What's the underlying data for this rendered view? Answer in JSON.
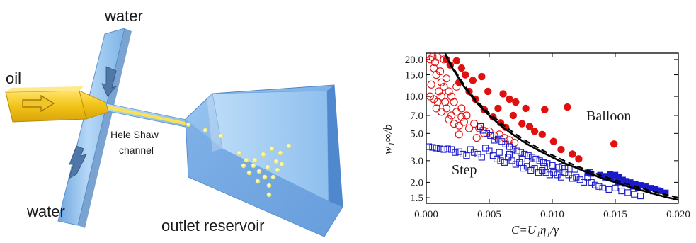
{
  "diagram": {
    "labels": {
      "water_top": "water",
      "water_bottom": "water",
      "oil": "oil",
      "channel_line1": "Hele Shaw",
      "channel_line2": "channel",
      "reservoir": "outlet reservoir"
    },
    "colors": {
      "water_channel": "#9cc8f2",
      "reservoir": "#7fb2ea",
      "oil": "#f2c418",
      "droplet": "#f4f58a",
      "arrow": "#4f77a8"
    }
  },
  "chart_data": {
    "type": "scatter",
    "xlabel": "C=U₁η₁/γ",
    "ylabel": "w₁∞/b",
    "xlim": [
      0.0,
      0.02
    ],
    "ylim": [
      1.35,
      22.5
    ],
    "yscale": "log",
    "xticks": [
      "0.000",
      "0.005",
      "0.010",
      "0.015",
      "0.020"
    ],
    "yticks": [
      "1.5",
      "2.0",
      "3.0",
      "5.0",
      "7.0",
      "10.0",
      "15.0",
      "20.0"
    ],
    "annotations": [
      "Balloon",
      "Step"
    ],
    "colors": {
      "balloon": "#e01010",
      "step": "#1a1ac8",
      "curve": "#000000"
    },
    "series": [
      {
        "marker": "filled-circle",
        "points": [
          [
            0.0016,
            20
          ],
          [
            0.0019,
            18
          ],
          [
            0.0024,
            19.5
          ],
          [
            0.0028,
            17
          ],
          [
            0.0031,
            15
          ],
          [
            0.0026,
            13
          ],
          [
            0.0037,
            13.5
          ],
          [
            0.0044,
            14.5
          ],
          [
            0.0034,
            11
          ],
          [
            0.0039,
            9.5
          ],
          [
            0.0049,
            11
          ],
          [
            0.0061,
            10.5
          ],
          [
            0.0057,
            8
          ],
          [
            0.0066,
            9.5
          ],
          [
            0.0071,
            9
          ],
          [
            0.0079,
            8
          ],
          [
            0.0069,
            7
          ],
          [
            0.0046,
            7.8
          ],
          [
            0.0053,
            6.8
          ],
          [
            0.0059,
            6.1
          ],
          [
            0.0063,
            5.6
          ],
          [
            0.0076,
            6.0
          ],
          [
            0.0082,
            5.7
          ],
          [
            0.0086,
            5.2
          ],
          [
            0.0092,
            4.9
          ],
          [
            0.0101,
            4.3
          ],
          [
            0.0107,
            3.7
          ],
          [
            0.0116,
            3.4
          ],
          [
            0.0121,
            3.1
          ],
          [
            0.0094,
            7.8
          ],
          [
            0.0112,
            8.2
          ],
          [
            0.0149,
            4.1
          ]
        ]
      },
      {
        "marker": "open-circle",
        "points": [
          [
            0.0003,
            20
          ],
          [
            0.0005,
            21
          ],
          [
            0.0007,
            19
          ],
          [
            0.0009,
            21
          ],
          [
            0.0006,
            17
          ],
          [
            0.0011,
            16
          ],
          [
            0.0014,
            20
          ],
          [
            0.0008,
            15
          ],
          [
            0.0012,
            13
          ],
          [
            0.0016,
            14
          ],
          [
            0.0004,
            12.5
          ],
          [
            0.001,
            11
          ],
          [
            0.0003,
            10
          ],
          [
            0.0006,
            9.5
          ],
          [
            0.0009,
            9
          ],
          [
            0.0012,
            10
          ],
          [
            0.0015,
            9
          ],
          [
            0.0018,
            11
          ],
          [
            0.002,
            10
          ],
          [
            0.0022,
            9
          ],
          [
            0.0024,
            12
          ],
          [
            0.0008,
            8
          ],
          [
            0.0012,
            7.5
          ],
          [
            0.0016,
            8
          ],
          [
            0.002,
            7
          ],
          [
            0.0024,
            7.5
          ],
          [
            0.0028,
            8
          ],
          [
            0.0032,
            7
          ],
          [
            0.0018,
            6.5
          ],
          [
            0.0022,
            6
          ],
          [
            0.0026,
            5.8
          ],
          [
            0.003,
            6.2
          ],
          [
            0.0034,
            5.5
          ],
          [
            0.0038,
            6
          ],
          [
            0.0042,
            5.5
          ],
          [
            0.0046,
            5.0
          ],
          [
            0.005,
            5.2
          ],
          [
            0.0054,
            4.8
          ],
          [
            0.0058,
            4.9
          ],
          [
            0.0062,
            4.6
          ],
          [
            0.0066,
            4.4
          ],
          [
            0.007,
            4.2
          ],
          [
            0.004,
            4.6
          ],
          [
            0.0026,
            4.9
          ],
          [
            0.0028,
            6.8
          ],
          [
            0.0014,
            12
          ]
        ]
      },
      {
        "marker": "open-square",
        "points": [
          [
            0.0002,
            3.9
          ],
          [
            0.0005,
            3.85
          ],
          [
            0.0008,
            3.8
          ],
          [
            0.0011,
            3.75
          ],
          [
            0.0014,
            3.7
          ],
          [
            0.0017,
            3.75
          ],
          [
            0.002,
            3.7
          ],
          [
            0.0023,
            3.5
          ],
          [
            0.0026,
            3.55
          ],
          [
            0.0029,
            3.4
          ],
          [
            0.0032,
            3.3
          ],
          [
            0.0035,
            3.7
          ],
          [
            0.0038,
            3.5
          ],
          [
            0.0041,
            3.4
          ],
          [
            0.0044,
            3.2
          ],
          [
            0.0047,
            3.8
          ],
          [
            0.005,
            3.6
          ],
          [
            0.0053,
            3.3
          ],
          [
            0.0056,
            3.1
          ],
          [
            0.0059,
            3.0
          ],
          [
            0.0062,
            2.9
          ],
          [
            0.0065,
            3.2
          ],
          [
            0.0068,
            3.0
          ],
          [
            0.0071,
            2.8
          ],
          [
            0.0074,
            2.9
          ],
          [
            0.0077,
            2.6
          ],
          [
            0.008,
            2.7
          ],
          [
            0.0083,
            2.5
          ],
          [
            0.0086,
            2.6
          ],
          [
            0.0089,
            2.4
          ],
          [
            0.0092,
            2.5
          ],
          [
            0.0095,
            2.4
          ],
          [
            0.0098,
            2.3
          ],
          [
            0.0101,
            2.4
          ],
          [
            0.0104,
            2.3
          ],
          [
            0.0107,
            2.2
          ],
          [
            0.011,
            2.4
          ],
          [
            0.0113,
            2.3
          ],
          [
            0.0116,
            2.15
          ],
          [
            0.0119,
            2.2
          ],
          [
            0.0122,
            2.1
          ],
          [
            0.0125,
            2.0
          ],
          [
            0.0128,
            2.2
          ],
          [
            0.0131,
            2.0
          ],
          [
            0.0134,
            1.9
          ],
          [
            0.0137,
            1.85
          ],
          [
            0.014,
            1.8
          ],
          [
            0.0145,
            1.75
          ],
          [
            0.015,
            1.8
          ],
          [
            0.0155,
            1.7
          ],
          [
            0.016,
            1.65
          ],
          [
            0.0165,
            1.6
          ],
          [
            0.017,
            1.55
          ],
          [
            0.0043,
            5.7
          ],
          [
            0.0045,
            5.3
          ],
          [
            0.0048,
            5.0
          ],
          [
            0.0051,
            4.8
          ],
          [
            0.0054,
            4.4
          ],
          [
            0.0057,
            4.5
          ],
          [
            0.006,
            4.3
          ],
          [
            0.0063,
            4.1
          ],
          [
            0.0066,
            3.9
          ],
          [
            0.0069,
            3.7
          ],
          [
            0.0072,
            3.6
          ],
          [
            0.0075,
            3.5
          ],
          [
            0.0078,
            3.4
          ],
          [
            0.0081,
            3.3
          ],
          [
            0.0084,
            3.2
          ],
          [
            0.0087,
            3.1
          ],
          [
            0.009,
            3.0
          ],
          [
            0.0093,
            2.9
          ],
          [
            0.0096,
            2.85
          ],
          [
            0.01,
            2.75
          ],
          [
            0.0105,
            2.65
          ],
          [
            0.011,
            2.6
          ],
          [
            0.0058,
            3.5
          ],
          [
            0.0066,
            3.4
          ],
          [
            0.0076,
            3.1
          ],
          [
            0.0084,
            2.8
          ],
          [
            0.0094,
            2.7
          ],
          [
            0.0108,
            2.7
          ],
          [
            0.0118,
            2.55
          ],
          [
            0.013,
            2.4
          ],
          [
            0.0142,
            2.2
          ],
          [
            0.0152,
            2.05
          ],
          [
            0.0162,
            1.95
          ],
          [
            0.0172,
            1.8
          ],
          [
            0.018,
            1.7
          ]
        ]
      },
      {
        "marker": "filled-square",
        "points": [
          [
            0.0128,
            2.4
          ],
          [
            0.0131,
            2.35
          ],
          [
            0.0138,
            2.3
          ],
          [
            0.0142,
            2.25
          ],
          [
            0.0146,
            2.35
          ],
          [
            0.015,
            2.3
          ],
          [
            0.0153,
            2.2
          ],
          [
            0.0156,
            2.1
          ],
          [
            0.0159,
            2.05
          ],
          [
            0.0162,
            2.0
          ],
          [
            0.0166,
            1.95
          ],
          [
            0.017,
            1.9
          ],
          [
            0.0174,
            1.85
          ],
          [
            0.0178,
            1.8
          ],
          [
            0.0182,
            1.78
          ],
          [
            0.0186,
            1.7
          ],
          [
            0.019,
            1.65
          ],
          [
            0.0147,
            2.15
          ],
          [
            0.0152,
            2.0
          ],
          [
            0.0158,
            1.95
          ],
          [
            0.0164,
            1.85
          ],
          [
            0.0168,
            1.8
          ],
          [
            0.0176,
            1.75
          ],
          [
            0.0184,
            1.72
          ]
        ]
      },
      {
        "marker": "line-solid",
        "points": [
          [
            0.0015,
            22
          ],
          [
            0.002,
            17.5
          ],
          [
            0.003,
            12
          ],
          [
            0.004,
            8.9
          ],
          [
            0.005,
            7.0
          ],
          [
            0.006,
            5.7
          ],
          [
            0.007,
            4.8
          ],
          [
            0.008,
            4.1
          ],
          [
            0.009,
            3.6
          ],
          [
            0.01,
            3.2
          ],
          [
            0.011,
            2.85
          ],
          [
            0.012,
            2.6
          ],
          [
            0.013,
            2.35
          ],
          [
            0.014,
            2.15
          ],
          [
            0.015,
            2.0
          ],
          [
            0.016,
            1.85
          ],
          [
            0.017,
            1.73
          ],
          [
            0.018,
            1.62
          ],
          [
            0.019,
            1.52
          ],
          [
            0.02,
            1.44
          ]
        ]
      },
      {
        "marker": "line-dashed",
        "points": [
          [
            0.0015,
            22.5
          ],
          [
            0.002,
            18
          ],
          [
            0.003,
            12.4
          ],
          [
            0.004,
            9.2
          ],
          [
            0.005,
            7.3
          ],
          [
            0.006,
            6.0
          ],
          [
            0.007,
            5.0
          ],
          [
            0.008,
            4.3
          ],
          [
            0.009,
            3.75
          ],
          [
            0.01,
            3.33
          ],
          [
            0.011,
            2.98
          ],
          [
            0.012,
            2.7
          ],
          [
            0.013,
            2.45
          ],
          [
            0.014,
            2.25
          ],
          [
            0.015,
            2.08
          ],
          [
            0.016,
            1.93
          ],
          [
            0.017,
            1.8
          ],
          [
            0.018,
            1.69
          ],
          [
            0.019,
            1.59
          ],
          [
            0.02,
            1.5
          ]
        ]
      }
    ]
  }
}
